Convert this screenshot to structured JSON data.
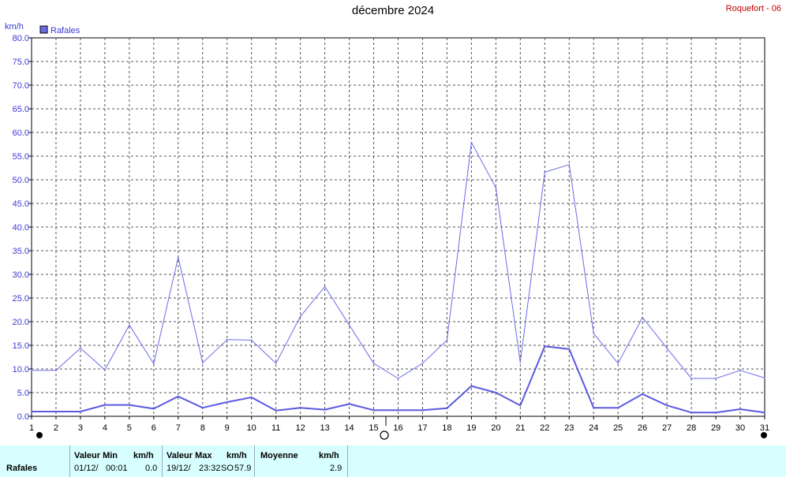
{
  "title": "décembre 2024",
  "station": "Roquefort - 06",
  "colors": {
    "gust": "#6b6be8",
    "avg": "#5a5ae0",
    "grid": "#555555",
    "axis": "#3a3ad8",
    "stats_bg": "#d8ffff"
  },
  "chart_data": {
    "type": "line",
    "unit_label": "km/h",
    "legend": [
      "Rafales"
    ],
    "legend_placement": "top-left",
    "grid": true,
    "x": [
      1,
      2,
      3,
      4,
      5,
      6,
      7,
      8,
      9,
      10,
      11,
      12,
      13,
      14,
      15,
      16,
      17,
      18,
      19,
      20,
      21,
      22,
      23,
      24,
      25,
      26,
      27,
      28,
      29,
      30,
      31
    ],
    "xlim": [
      1,
      31
    ],
    "ylim": [
      0,
      80
    ],
    "y_ticks": [
      "0.0",
      "5.0",
      "10.0",
      "15.0",
      "20.0",
      "25.0",
      "30.0",
      "35.0",
      "40.0",
      "45.0",
      "50.0",
      "55.0",
      "60.0",
      "65.0",
      "70.0",
      "75.0",
      "80.0"
    ],
    "series": [
      {
        "name": "Rafales",
        "values": [
          9.7,
          9.7,
          14.4,
          9.8,
          19.3,
          11.1,
          33.6,
          11.3,
          16.2,
          16.1,
          11.2,
          21.1,
          27.4,
          19.3,
          11.2,
          8.0,
          11.2,
          16.1,
          57.9,
          48.3,
          11.4,
          51.6,
          53.2,
          17.5,
          11.2,
          20.9,
          14.4,
          8.0,
          8.0,
          9.7,
          8.1
        ]
      },
      {
        "values": [
          1.0,
          1.0,
          1.0,
          2.4,
          2.4,
          1.6,
          4.2,
          1.8,
          3.0,
          4.0,
          1.2,
          1.8,
          1.4,
          2.6,
          1.3,
          1.3,
          1.3,
          1.7,
          6.4,
          5.0,
          2.3,
          14.8,
          14.2,
          1.8,
          1.8,
          4.7,
          2.3,
          0.8,
          0.8,
          1.5,
          0.8
        ]
      }
    ]
  },
  "stats": {
    "row_label": "Rafales",
    "min_header": "Valeur Min",
    "min_unit": "km/h",
    "min_date": "01/12/",
    "min_time": "00:01",
    "min_value": "0.0",
    "max_header": "Valeur Max",
    "max_unit": "km/h",
    "max_date": "19/12/",
    "max_time": "23:32",
    "max_dir": "SO",
    "max_value": "57.9",
    "avg_header": "Moyenne",
    "avg_unit": "km/h",
    "avg_value": "2.9"
  }
}
